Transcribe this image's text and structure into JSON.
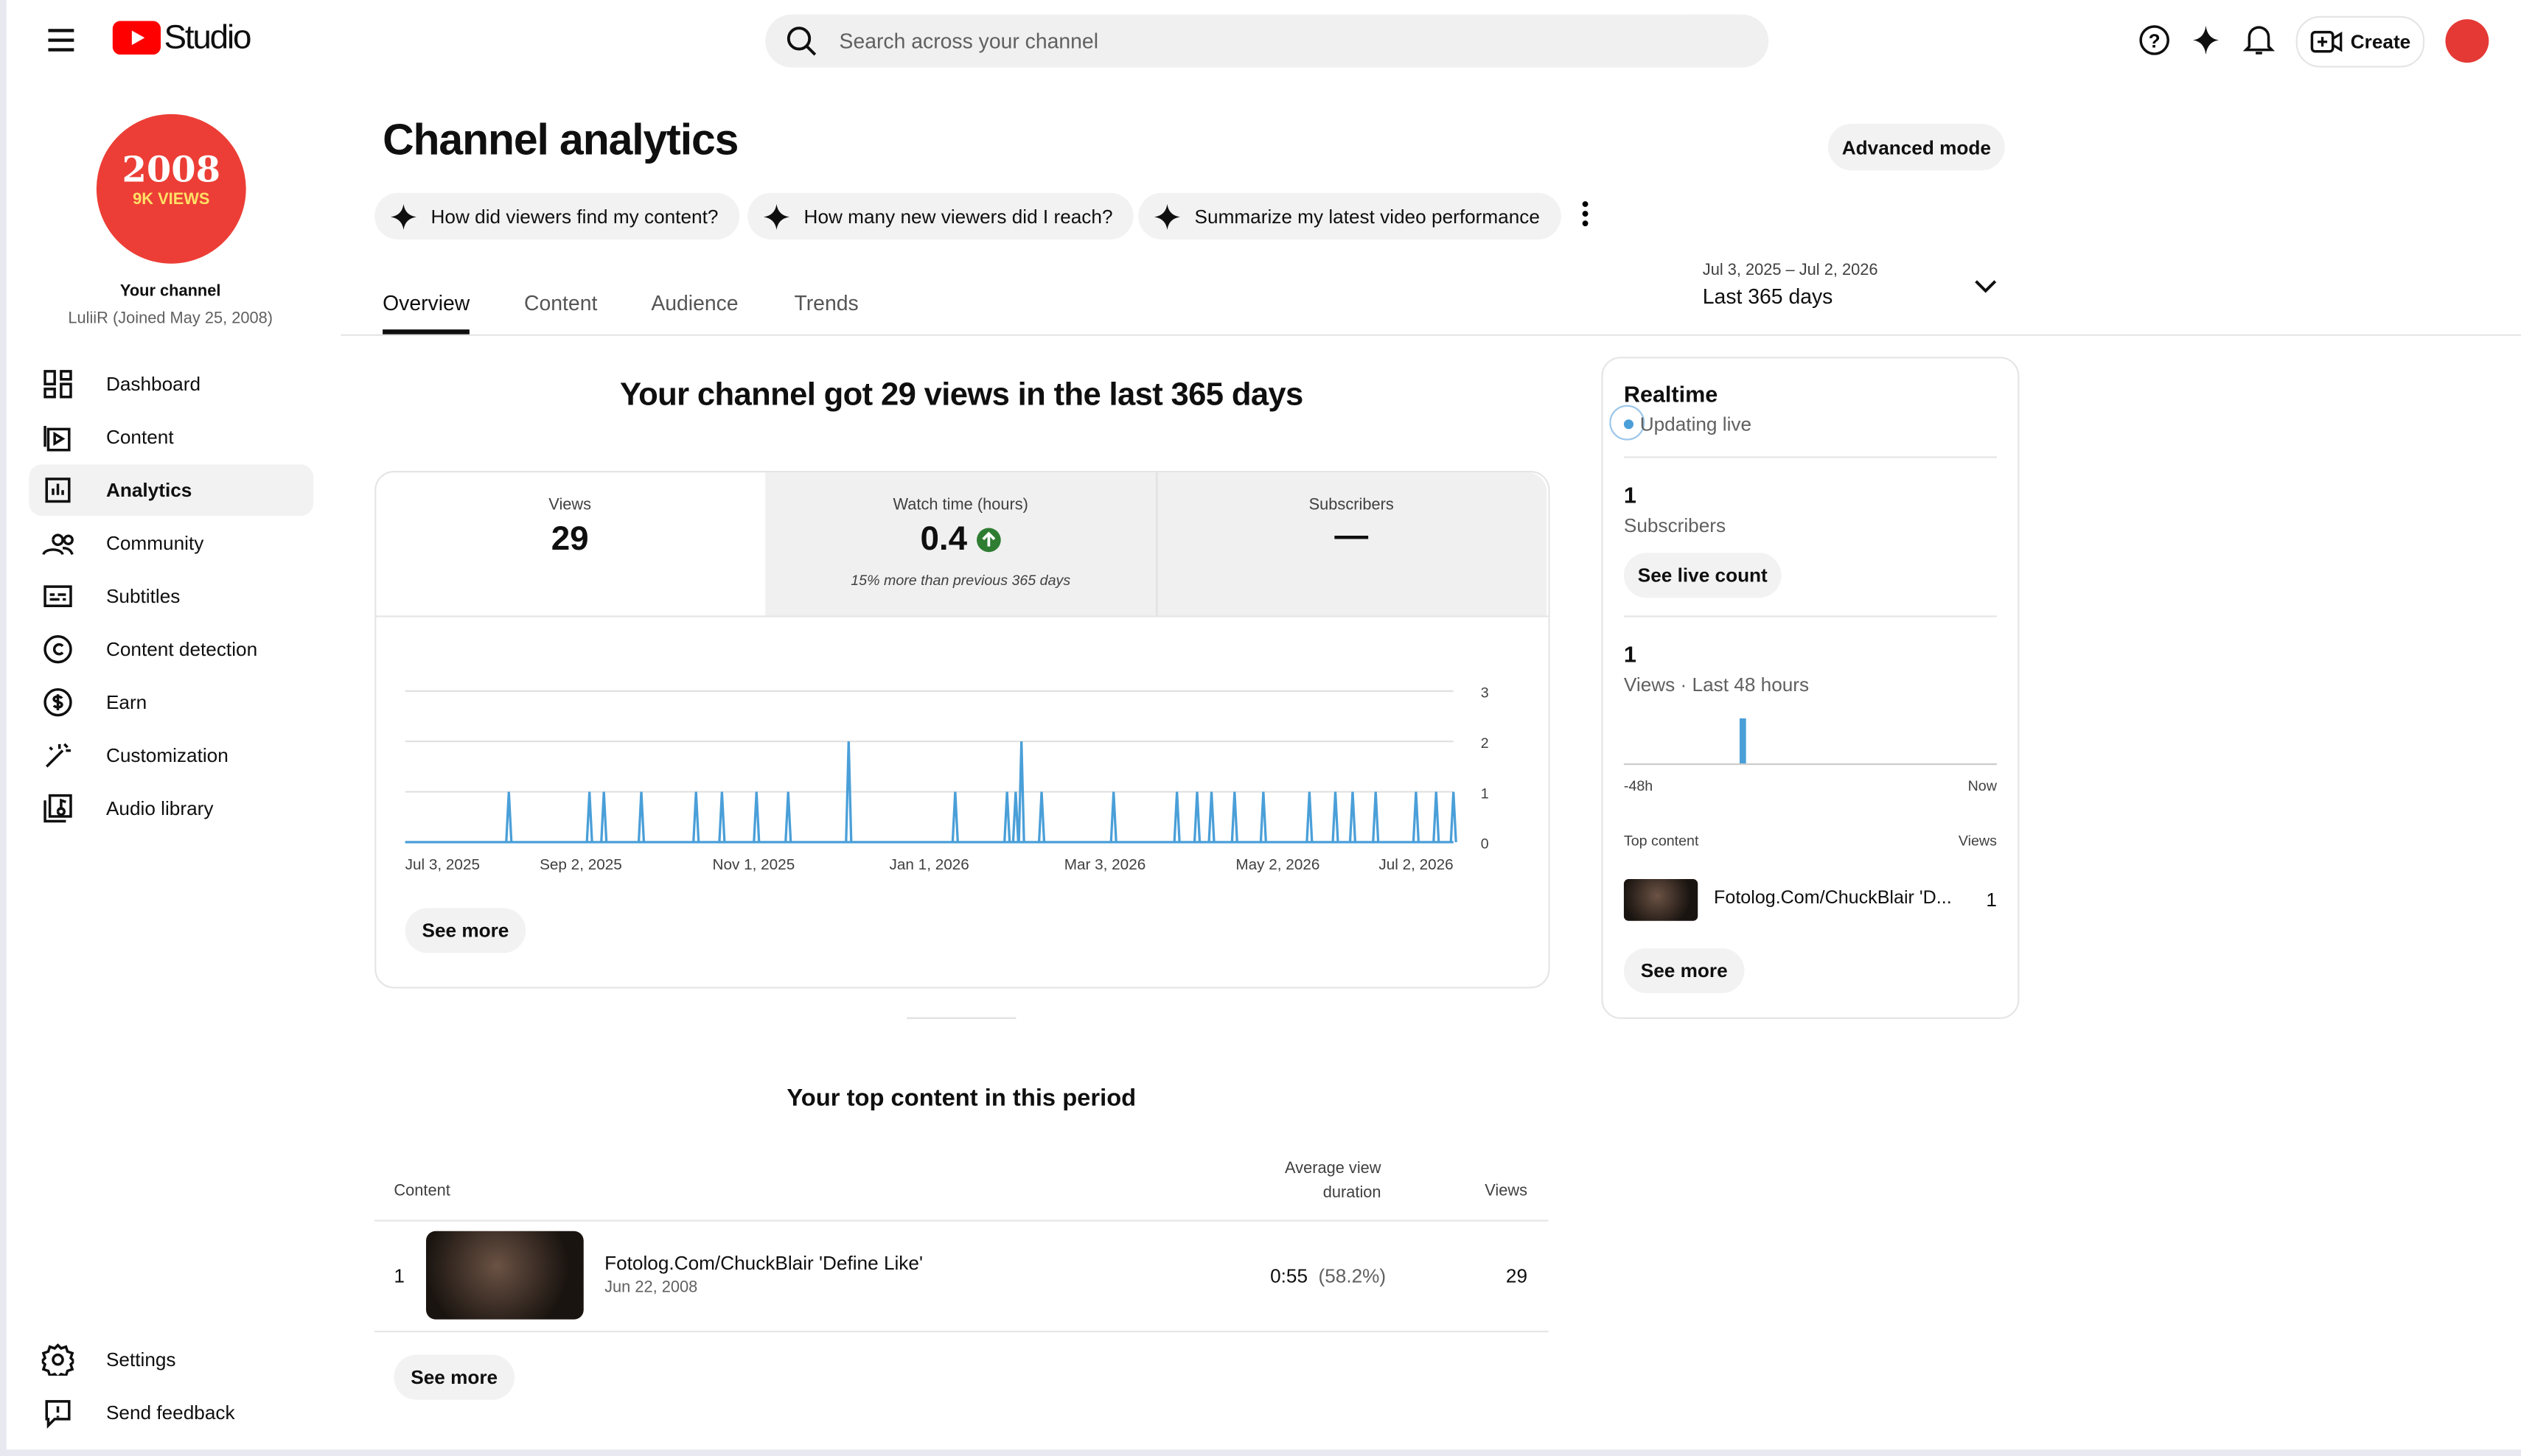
{
  "header": {
    "logo": "Studio",
    "search_placeholder": "Search across your channel",
    "create": "Create"
  },
  "sidebar": {
    "avatar_top": "2008",
    "avatar_bottom": "9K VIEWS",
    "channel_title": "Your channel",
    "channel_subtitle": "LuliiR (Joined May 25, 2008)",
    "nav": [
      "Dashboard",
      "Content",
      "Analytics",
      "Community",
      "Subtitles",
      "Content detection",
      "Earn",
      "Customization",
      "Audio library"
    ],
    "active": "Analytics",
    "bottom": [
      "Settings",
      "Send feedback"
    ]
  },
  "main": {
    "title": "Channel analytics",
    "advanced_mode": "Advanced mode",
    "chips": [
      "How did viewers find my content?",
      "How many new viewers did I reach?",
      "Summarize my latest video performance"
    ],
    "tabs": [
      "Overview",
      "Content",
      "Audience",
      "Trends"
    ],
    "date_range": "Jul 3, 2025 – Jul 2, 2026",
    "date_label": "Last 365 days",
    "headline": "Your channel got 29 views in the last 365 days",
    "metrics": [
      {
        "label": "Views",
        "value": 29
      },
      {
        "label": "Watch time (hours)",
        "value": 0.4,
        "note": "15% more than previous 365 days"
      },
      {
        "label": "Subscribers",
        "value": "—"
      }
    ],
    "see_more": "See more",
    "top_title": "Your top content in this period",
    "table": {
      "headers": [
        "Content",
        "Average view duration",
        "Views"
      ],
      "rows": [
        {
          "rank": 1,
          "title": "Fotolog.Com/ChuckBlair 'Define Like'",
          "date": "Jun 22, 2008",
          "duration": "0:55",
          "percent": "(58.2%)",
          "views": 29
        }
      ]
    },
    "see_more_2": "See more"
  },
  "realtime": {
    "title": "Realtime",
    "status": "Updating live",
    "subs_value": 1,
    "subs_label": "Subscribers",
    "live_count": "See live count",
    "views_value": 1,
    "views_label": "Views · Last 48 hours",
    "bar_value": 1,
    "axis_left": "-48h",
    "axis_right": "Now",
    "top_label": "Top content",
    "views_col": "Views",
    "item_title": "Fotolog.Com/ChuckBlair 'D...",
    "item_views": 1,
    "see_more": "See more"
  },
  "chart_data": {
    "type": "line",
    "x": [
      36,
      64,
      69,
      82,
      101,
      110,
      122,
      133,
      154,
      191,
      209,
      212,
      214,
      221,
      246,
      268,
      275,
      280,
      288,
      298,
      314,
      323,
      329,
      337,
      351,
      358,
      364
    ],
    "series": [
      {
        "name": "Views",
        "color": "#4a9fd8",
        "values": [
          1,
          1,
          1,
          1,
          1,
          1,
          1,
          1,
          2,
          1,
          1,
          1,
          2,
          1,
          1,
          1,
          1,
          1,
          1,
          1,
          1,
          1,
          1,
          1,
          1,
          1,
          1
        ]
      }
    ],
    "xlim": [
      0,
      364
    ],
    "xticks": [
      {
        "value": 0,
        "label": "Jul 3, 2025"
      },
      {
        "value": 61,
        "label": "Sep 2, 2025"
      },
      {
        "value": 121,
        "label": "Nov 1, 2025"
      },
      {
        "value": 182,
        "label": "Jan 1, 2026"
      },
      {
        "value": 243,
        "label": "Mar 3, 2026"
      },
      {
        "value": 303,
        "label": "May 2, 2026"
      },
      {
        "value": 364,
        "label": "Jul 2, 2026"
      }
    ],
    "ylim": [
      0,
      3
    ],
    "yticks": [
      0,
      1,
      2,
      3
    ],
    "grid": true
  }
}
